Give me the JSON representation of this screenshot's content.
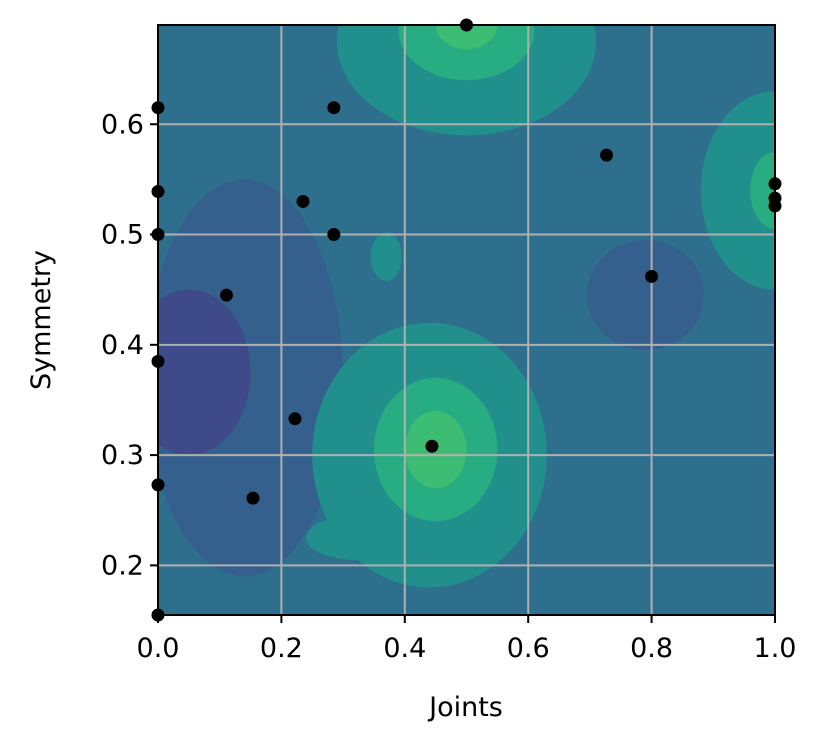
{
  "chart_data": {
    "type": "scatter",
    "subtype": "filled-contour-with-scatter",
    "title": "",
    "xlabel": "Joints",
    "ylabel": "Symmetry",
    "xlim": [
      0.0,
      1.0
    ],
    "ylim": [
      0.155,
      0.69
    ],
    "xticks": [
      0.0,
      0.2,
      0.4,
      0.6,
      0.8,
      1.0
    ],
    "xtick_labels": [
      "0.0",
      "0.2",
      "0.4",
      "0.6",
      "0.8",
      "1.0"
    ],
    "yticks": [
      0.2,
      0.3,
      0.4,
      0.5,
      0.6
    ],
    "ytick_labels": [
      "0.2",
      "0.3",
      "0.4",
      "0.5",
      "0.6"
    ],
    "grid": true,
    "colormap": "viridis",
    "colors": {
      "background_level": "#2e6f8e",
      "low_level_1": "#35608d",
      "low_level_2": "#3e4a89",
      "high_level_1": "#21908d",
      "high_level_2": "#27ad81",
      "high_level_3": "#3dbc74",
      "point": "#000000",
      "grid": "#b0b0b0"
    },
    "points": [
      {
        "x": 0.5,
        "y": 0.69
      },
      {
        "x": 0.0,
        "y": 0.615
      },
      {
        "x": 0.285,
        "y": 0.615
      },
      {
        "x": 0.727,
        "y": 0.572
      },
      {
        "x": 0.0,
        "y": 0.539
      },
      {
        "x": 0.235,
        "y": 0.53
      },
      {
        "x": 0.0,
        "y": 0.5
      },
      {
        "x": 0.285,
        "y": 0.5
      },
      {
        "x": 1.0,
        "y": 0.546
      },
      {
        "x": 1.0,
        "y": 0.533
      },
      {
        "x": 1.0,
        "y": 0.526
      },
      {
        "x": 0.8,
        "y": 0.462
      },
      {
        "x": 0.111,
        "y": 0.445
      },
      {
        "x": 0.0,
        "y": 0.385
      },
      {
        "x": 0.222,
        "y": 0.333
      },
      {
        "x": 0.444,
        "y": 0.308
      },
      {
        "x": 0.0,
        "y": 0.273
      },
      {
        "x": 0.154,
        "y": 0.261
      },
      {
        "x": 0.0,
        "y": 0.155
      }
    ],
    "contour_regions": [
      {
        "level": "low_level_1",
        "x": 0.14,
        "y": 0.37,
        "rx": 0.16,
        "ry": 0.18
      },
      {
        "level": "low_level_2",
        "x": 0.05,
        "y": 0.375,
        "rx": 0.1,
        "ry": 0.075
      },
      {
        "level": "low_level_1",
        "x": 0.79,
        "y": 0.445,
        "rx": 0.095,
        "ry": 0.05
      },
      {
        "level": "high_level_1",
        "x": 0.44,
        "y": 0.3,
        "rx": 0.19,
        "ry": 0.12
      },
      {
        "level": "high_level_1",
        "x": 0.32,
        "y": 0.225,
        "rx": 0.08,
        "ry": 0.02
      },
      {
        "level": "high_level_2",
        "x": 0.45,
        "y": 0.305,
        "rx": 0.1,
        "ry": 0.065
      },
      {
        "level": "high_level_3",
        "x": 0.45,
        "y": 0.305,
        "rx": 0.05,
        "ry": 0.035
      },
      {
        "level": "high_level_1",
        "x": 0.5,
        "y": 0.675,
        "rx": 0.21,
        "ry": 0.085
      },
      {
        "level": "high_level_2",
        "x": 0.5,
        "y": 0.685,
        "rx": 0.11,
        "ry": 0.045
      },
      {
        "level": "high_level_3",
        "x": 0.5,
        "y": 0.69,
        "rx": 0.05,
        "ry": 0.022
      },
      {
        "level": "high_level_1",
        "x": 1.0,
        "y": 0.54,
        "rx": 0.12,
        "ry": 0.09
      },
      {
        "level": "high_level_2",
        "x": 1.0,
        "y": 0.54,
        "rx": 0.04,
        "ry": 0.035
      },
      {
        "level": "high_level_1",
        "x": 0.37,
        "y": 0.48,
        "rx": 0.025,
        "ry": 0.022
      }
    ]
  }
}
